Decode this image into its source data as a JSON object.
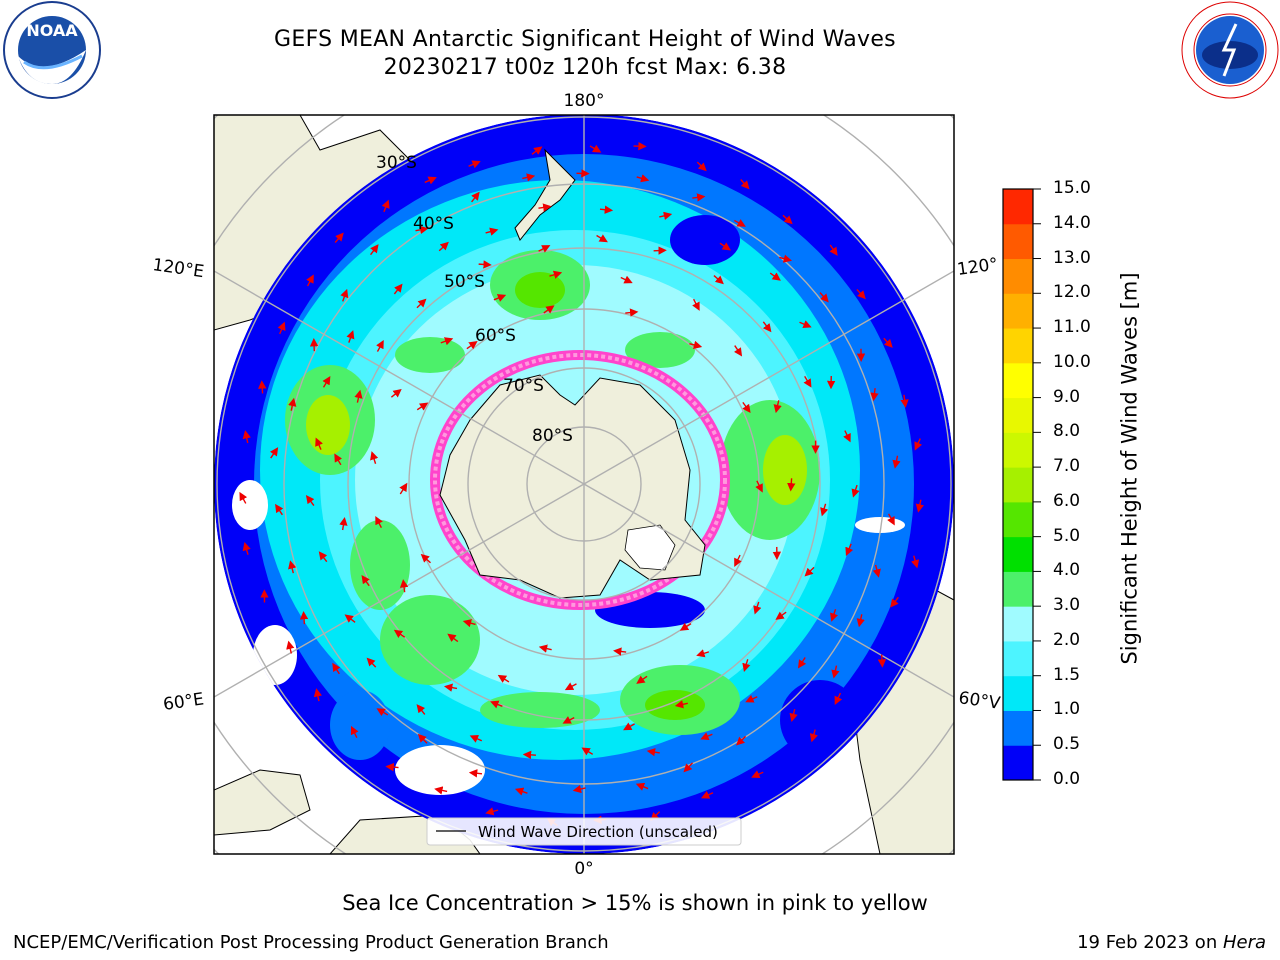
{
  "header": {
    "title_line1": "GEFS MEAN Antarctic Significant Height of Wind Waves",
    "title_line2": "20230217 t00z 120h fcst   Max: 6.38"
  },
  "map": {
    "projection": "south-polar-stereographic",
    "longitude_labels": {
      "top": "180°",
      "bottom": "0°",
      "upper_left": "120°E",
      "upper_right": "120°",
      "lower_left": "60°E",
      "lower_right": "60°V"
    },
    "latitude_labels": [
      "30°S",
      "40°S",
      "50°S",
      "60°S",
      "70°S",
      "80°S"
    ],
    "legend_label": "Wind Wave Direction (unscaled)",
    "max_value": 6.38
  },
  "colorbar": {
    "label": "Significant Height of Wind Waves [m]",
    "ticks": [
      "0.0",
      "0.5",
      "1.0",
      "1.5",
      "2.0",
      "3.0",
      "4.0",
      "5.0",
      "6.0",
      "7.0",
      "8.0",
      "9.0",
      "10.0",
      "11.0",
      "12.0",
      "13.0",
      "14.0",
      "15.0"
    ],
    "colors": [
      "#0000f8",
      "#0077ff",
      "#00e8f8",
      "#4df4ff",
      "#a0fbff",
      "#4cf06a",
      "#00e000",
      "#55e600",
      "#a6f000",
      "#ccf800",
      "#e8f800",
      "#ffff00",
      "#ffd400",
      "#ffb000",
      "#ff8c00",
      "#ff5a00",
      "#ff2800",
      "#ff0000"
    ]
  },
  "annotations": {
    "sea_ice_note": "Sea Ice Concentration > 15% is shown in pink to yellow",
    "footer_left": "NCEP/EMC/Verification Post Processing Product Generation Branch",
    "footer_date": "19 Feb 2023 on ",
    "footer_host": "Hera"
  },
  "logos": {
    "left": "NOAA",
    "left_ring": "NATIONAL OCEANIC AND ATMOSPHERIC ADMINISTRATION · U.S. DEPARTMENT OF COMMERCE",
    "right_ring": "NATIONAL WEATHER SERVICE"
  }
}
